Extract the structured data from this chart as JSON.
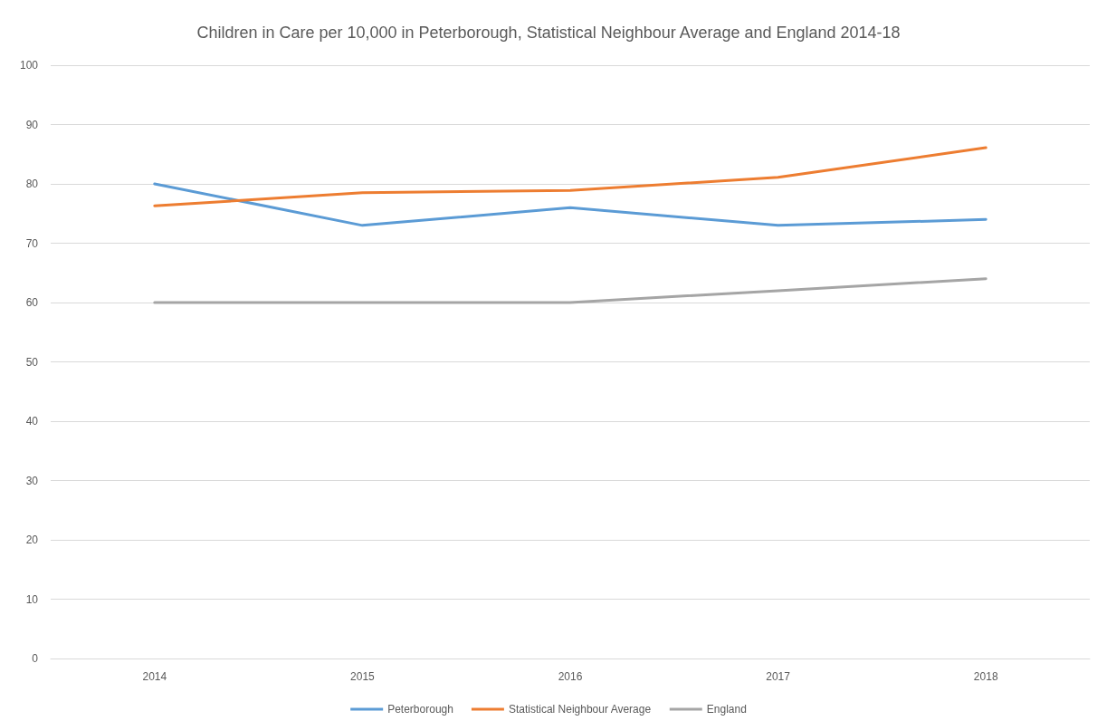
{
  "chart_data": {
    "type": "line",
    "title": "Children in Care per 10,000 in Peterborough, Statistical Neighbour Average and England 2014-18",
    "categories": [
      "2014",
      "2015",
      "2016",
      "2017",
      "2018"
    ],
    "series": [
      {
        "name": "Peterborough",
        "color": "#5b9bd5",
        "values": [
          80,
          73,
          76,
          73,
          74
        ]
      },
      {
        "name": "Statistical Neighbour Average",
        "color": "#ed7d31",
        "values": [
          76.3,
          78.5,
          78.9,
          81.1,
          86.1
        ]
      },
      {
        "name": "England",
        "color": "#a5a5a5",
        "values": [
          60,
          60,
          60,
          62,
          64
        ]
      }
    ],
    "ylim": [
      0,
      100
    ],
    "yticks": [
      0,
      10,
      20,
      30,
      40,
      50,
      60,
      70,
      80,
      90,
      100
    ],
    "grid": "y",
    "legend": "bottom",
    "marker": "none",
    "line_style": "solid"
  }
}
